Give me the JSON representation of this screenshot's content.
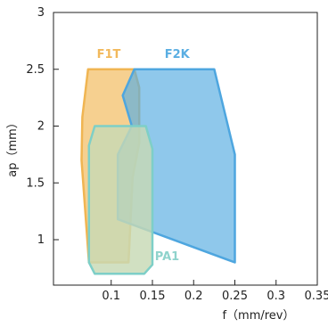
{
  "chart_data": {
    "type": "area",
    "xlabel": "f（mm/rev）",
    "ylabel": "ap（mm）",
    "xlim": [
      0.03,
      0.35
    ],
    "ylim": [
      0.6,
      3.0
    ],
    "x_ticks": [
      {
        "value": 0.1,
        "label": "0.1"
      },
      {
        "value": 0.15,
        "label": "0.15"
      },
      {
        "value": 0.2,
        "label": "0.2"
      },
      {
        "value": 0.25,
        "label": "0.25"
      },
      {
        "value": 0.3,
        "label": "0.3"
      },
      {
        "value": 0.35,
        "label": "0.35"
      }
    ],
    "y_ticks": [
      {
        "value": 1,
        "label": "1"
      },
      {
        "value": 1.5,
        "label": "1.5"
      },
      {
        "value": 2,
        "label": "2"
      },
      {
        "value": 2.5,
        "label": "2.5"
      },
      {
        "value": 3,
        "label": "3"
      }
    ],
    "grid": false,
    "series": [
      {
        "name": "F1T",
        "fill": "#f2b95c",
        "stroke": "#f0b552",
        "label_color": "#f2b95c",
        "points": [
          [
            0.072,
            2.5
          ],
          [
            0.128,
            2.5
          ],
          [
            0.134,
            2.34
          ],
          [
            0.134,
            1.85
          ],
          [
            0.126,
            1.55
          ],
          [
            0.121,
            0.8
          ],
          [
            0.073,
            0.8
          ],
          [
            0.068,
            1.3
          ],
          [
            0.064,
            1.7
          ],
          [
            0.065,
            2.08
          ]
        ]
      },
      {
        "name": "F2K",
        "fill": "#5aaee2",
        "stroke": "#4ea6df",
        "label_color": "#5aaee2",
        "points": [
          [
            0.128,
            2.5
          ],
          [
            0.225,
            2.5
          ],
          [
            0.25,
            1.75
          ],
          [
            0.25,
            0.8
          ],
          [
            0.108,
            1.18
          ],
          [
            0.108,
            1.75
          ],
          [
            0.125,
            2.0
          ],
          [
            0.114,
            2.27
          ]
        ]
      },
      {
        "name": "PA1",
        "fill": "#c7d9b5",
        "stroke": "#7ecfc7",
        "label_color": "#8fd3cc",
        "points": [
          [
            0.08,
            2.0
          ],
          [
            0.142,
            2.0
          ],
          [
            0.15,
            1.8
          ],
          [
            0.15,
            0.78
          ],
          [
            0.14,
            0.7
          ],
          [
            0.08,
            0.7
          ],
          [
            0.073,
            0.8
          ],
          [
            0.073,
            1.83
          ]
        ]
      }
    ]
  }
}
